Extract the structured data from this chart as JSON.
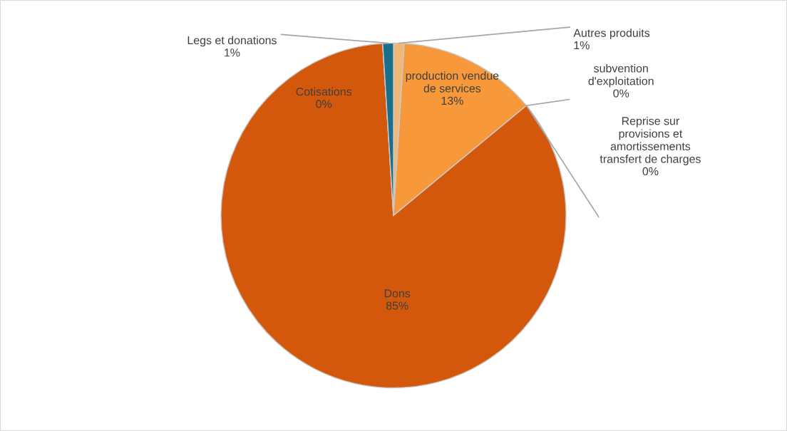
{
  "chart_data": {
    "type": "pie",
    "categories": [
      "Autres produits",
      "production vendue de services",
      "subvention d'exploitation",
      "Reprise sur provisions et amortissements transfert de charges",
      "Dons",
      "Cotisations",
      "Legs et donations"
    ],
    "values": [
      1,
      13,
      0,
      0,
      85,
      0,
      1
    ],
    "colors": [
      "#f0b878",
      "#f7993a",
      "#a5a5a5",
      "#ffc000",
      "#d4580b",
      "#4472c4",
      "#1b6f8a"
    ],
    "value_labels": [
      "1%",
      "13%",
      "0%",
      "0%",
      "85%",
      "0%",
      "1%"
    ]
  }
}
